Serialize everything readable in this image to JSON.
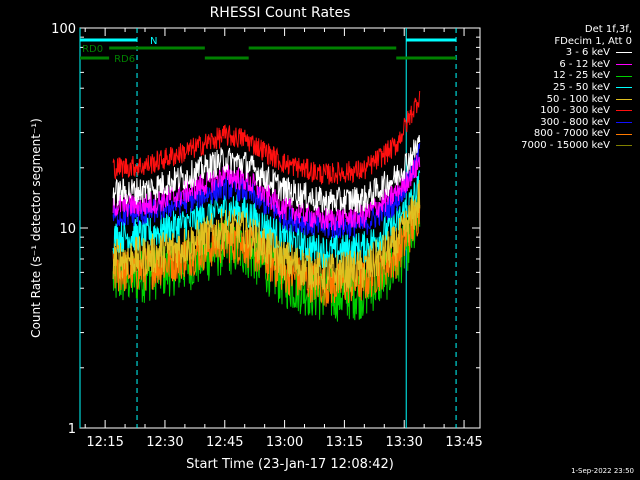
{
  "chart_data": {
    "type": "line",
    "title": "RHESSI Count Rates",
    "xlabel": "Start Time (23-Jan-17 12:08:42)",
    "ylabel": "Count Rate (s⁻¹ detector segment⁻¹)",
    "yscale": "log",
    "ylim": [
      1,
      100
    ],
    "xlim": [
      "12:08:42",
      "13:49:00"
    ],
    "x_ticks": [
      "12:15",
      "12:30",
      "12:45",
      "13:00",
      "13:15",
      "13:30",
      "13:45"
    ],
    "y_ticks": [
      "1",
      "10",
      "100"
    ],
    "legend_header": [
      "Det 1f,3f,",
      "FDecim 1, Att 0"
    ],
    "legend_placement": "top-right outside",
    "series": [
      {
        "name": "3 - 6 keV",
        "color": "#ffffff",
        "x": [
          "12:17",
          "12:25",
          "12:35",
          "12:45",
          "12:50",
          "13:00",
          "13:10",
          "13:20",
          "13:28",
          "13:33",
          "13:34"
        ],
        "values": [
          15,
          15.5,
          18,
          22,
          21,
          15.5,
          13.5,
          14,
          18,
          25,
          28
        ]
      },
      {
        "name": "6 - 12 keV",
        "color": "#ff00ff",
        "x": [
          "12:17",
          "12:25",
          "12:35",
          "12:45",
          "12:50",
          "13:00",
          "13:10",
          "13:20",
          "13:28",
          "13:33",
          "13:34"
        ],
        "values": [
          13,
          13,
          15,
          18.5,
          17.5,
          12.5,
          11,
          11.5,
          15,
          20,
          22
        ]
      },
      {
        "name": "12 - 25 keV",
        "color": "#00d000",
        "x": [
          "12:17",
          "12:25",
          "12:35",
          "12:45",
          "12:50",
          "13:00",
          "13:10",
          "13:20",
          "13:28",
          "13:33",
          "13:34"
        ],
        "values": [
          5.5,
          5.8,
          6.5,
          8,
          7.8,
          5.4,
          4.6,
          4.8,
          6.5,
          10,
          13
        ]
      },
      {
        "name": "25 - 50 keV",
        "color": "#00ffff",
        "x": [
          "12:17",
          "12:25",
          "12:35",
          "12:45",
          "12:50",
          "13:00",
          "13:10",
          "13:20",
          "13:28",
          "13:33",
          "13:34"
        ],
        "values": [
          9,
          9.3,
          10.5,
          12.5,
          12,
          8.8,
          7.6,
          8,
          10.5,
          15,
          17
        ]
      },
      {
        "name": "50 - 100 keV",
        "color": "#e0c020",
        "x": [
          "12:17",
          "12:25",
          "12:35",
          "12:45",
          "12:50",
          "13:00",
          "13:10",
          "13:20",
          "13:28",
          "13:33",
          "13:34"
        ],
        "values": [
          7,
          7.2,
          8.2,
          10,
          9.6,
          6.9,
          5.9,
          6.2,
          8.3,
          12.5,
          15
        ]
      },
      {
        "name": "100 - 300 keV",
        "color": "#ff1010",
        "x": [
          "12:17",
          "12:25",
          "12:35",
          "12:45",
          "12:50",
          "13:00",
          "13:10",
          "13:20",
          "13:28",
          "13:33",
          "13:34"
        ],
        "values": [
          20,
          20.5,
          24,
          29,
          28,
          21,
          18.5,
          19.5,
          26,
          42,
          47
        ]
      },
      {
        "name": "300 - 800 keV",
        "color": "#1010ff",
        "x": [
          "12:17",
          "12:25",
          "12:35",
          "12:45",
          "12:50",
          "13:00",
          "13:10",
          "13:20",
          "13:28",
          "13:33",
          "13:34"
        ],
        "values": [
          11.5,
          11.8,
          13.5,
          16,
          15.5,
          11.3,
          10,
          10.4,
          13.5,
          21,
          25
        ]
      },
      {
        "name": "800 - 7000 keV",
        "color": "#ff7a00",
        "x": [
          "12:17",
          "12:25",
          "12:35",
          "12:45",
          "12:50",
          "13:00",
          "13:10",
          "13:20",
          "13:28",
          "13:33",
          "13:34"
        ],
        "values": [
          6,
          6.2,
          7.2,
          8.6,
          8.3,
          6,
          5.2,
          5.4,
          7.2,
          11,
          13
        ]
      },
      {
        "name": "7000 - 15000 keV",
        "color": "#808000",
        "x": [
          "12:17",
          "12:25",
          "12:35",
          "12:45",
          "12:50",
          "13:00",
          "13:10",
          "13:20",
          "13:28",
          "13:33",
          "13:34"
        ],
        "values": [
          null,
          null,
          null,
          null,
          null,
          null,
          null,
          null,
          null,
          null,
          null
        ]
      }
    ],
    "annotations": [
      {
        "label": "N",
        "color": "#00ffff",
        "segments": [
          [
            "12:08:42",
            "12:23:00"
          ],
          [
            "13:30:30",
            "13:43:00"
          ]
        ]
      },
      {
        "label": "RD0",
        "color": "#008000",
        "segments": [
          [
            "12:16",
            "12:40"
          ],
          [
            "12:51",
            "13:28"
          ]
        ]
      },
      {
        "label": "RD6",
        "color": "#008000",
        "segments": [
          [
            "12:08:42",
            "12:16"
          ],
          [
            "12:40",
            "12:51"
          ],
          [
            "13:28",
            "13:43"
          ]
        ]
      }
    ],
    "vertical_lines": [
      {
        "x": "12:08:42",
        "style": "solid",
        "color": "#00ffff"
      },
      {
        "x": "12:23:00",
        "style": "dashed",
        "color": "#00ffff"
      },
      {
        "x": "13:30:30",
        "style": "solid",
        "color": "#00ffff"
      },
      {
        "x": "13:43:00",
        "style": "dashed",
        "color": "#00ffff"
      }
    ]
  },
  "footer": {
    "timestamp": "1-Sep-2022 23:50"
  }
}
